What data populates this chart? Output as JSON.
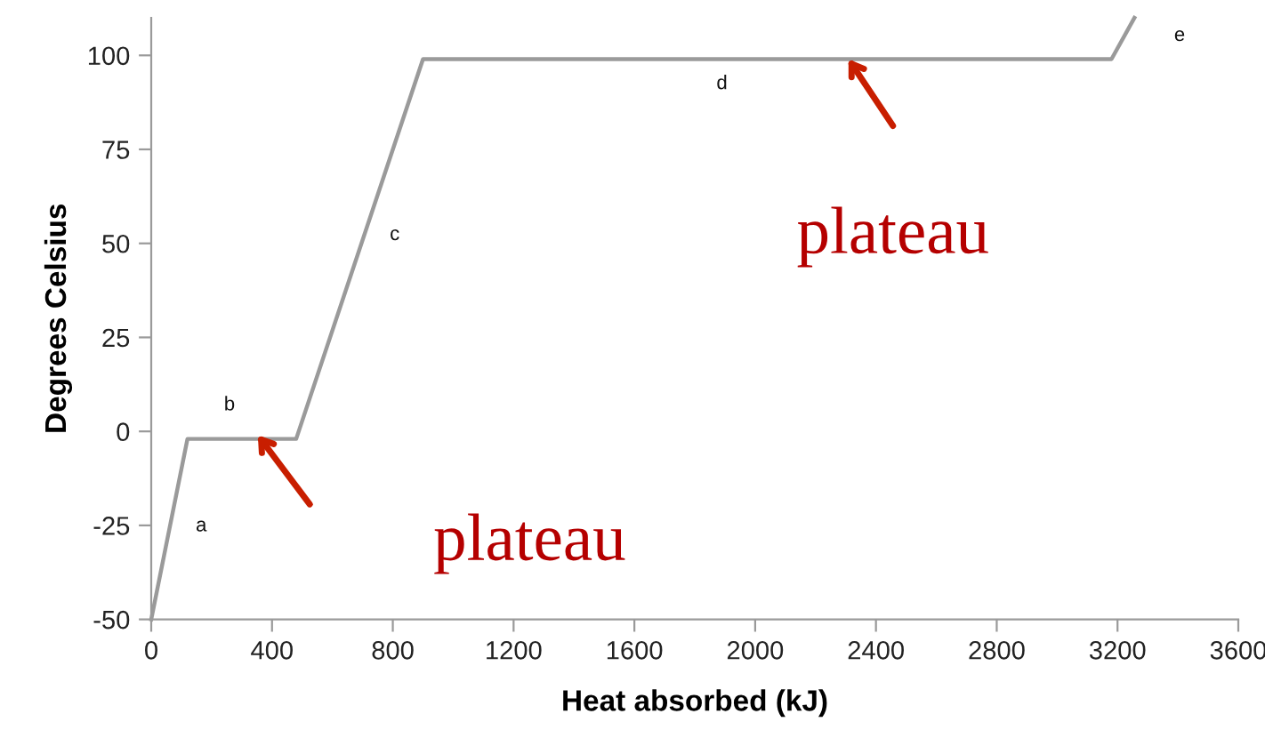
{
  "chart_data": {
    "type": "line",
    "xlabel": "Heat absorbed (kJ)",
    "ylabel": "Degrees Celsius",
    "series": [
      {
        "color": "#9a9a9a",
        "x": [
          0,
          120,
          480,
          900,
          3180,
          3256
        ],
        "values": [
          -50,
          -2,
          -2,
          99,
          99,
          110
        ]
      }
    ],
    "xlim": [
      0,
      3600
    ],
    "xticks": [
      0,
      400,
      800,
      1200,
      1600,
      2000,
      2400,
      2800,
      3200,
      3600
    ],
    "ylim": [
      -50,
      110
    ],
    "yticks": [
      -50,
      -25,
      0,
      25,
      50,
      75,
      100
    ],
    "grid": false,
    "legend": false,
    "marker": "none",
    "line_style": "solid",
    "annotations": [
      "a",
      "b",
      "c",
      "d",
      "e",
      {
        "text": "plateau",
        "x": 353,
        "y": -1
      },
      {
        "text": "plateau",
        "x": 2309,
        "y": 99
      }
    ]
  }
}
